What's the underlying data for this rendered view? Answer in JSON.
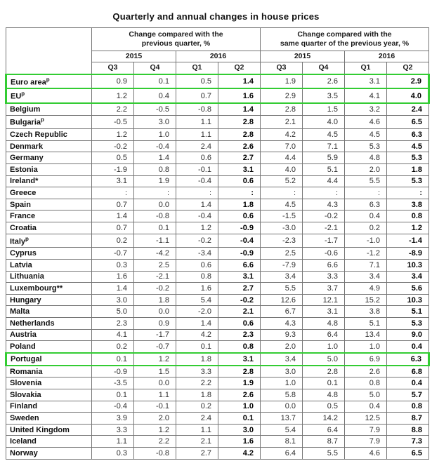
{
  "chart_data": {
    "type": "table",
    "title": "Quarterly and annual changes in house prices",
    "highlight_color": "#33cc33",
    "missing_value_symbol": ":",
    "group_headers": [
      {
        "line1": "Change compared with the",
        "line2": "previous quarter, %"
      },
      {
        "line1": "Change compared with the",
        "line2": "same quarter of the previous year, %"
      }
    ],
    "year_headers": [
      "2015",
      "2016",
      "2015",
      "2016"
    ],
    "quarter_headers": [
      "Q3",
      "Q4",
      "Q1",
      "Q2",
      "Q3",
      "Q4",
      "Q1",
      "Q2"
    ],
    "highlighted_rows": [
      "Euro area",
      "EU",
      "Portugal"
    ],
    "rows": [
      {
        "label": "Euro area",
        "sup": "p",
        "highlight": true,
        "values": [
          "0.9",
          "0.1",
          "0.5",
          "1.4",
          "1.9",
          "2.6",
          "3.1",
          "2.9"
        ]
      },
      {
        "label": "EU",
        "sup": "p",
        "highlight": true,
        "values": [
          "1.2",
          "0.4",
          "0.7",
          "1.6",
          "2.9",
          "3.5",
          "4.1",
          "4.0"
        ]
      },
      {
        "label": "Belgium",
        "highlight": false,
        "values": [
          "2.2",
          "-0.5",
          "-0.8",
          "1.4",
          "2.8",
          "1.5",
          "3.2",
          "2.4"
        ]
      },
      {
        "label": "Bulgaria",
        "sup": "p",
        "highlight": false,
        "values": [
          "-0.5",
          "3.0",
          "1.1",
          "2.8",
          "2.1",
          "4.0",
          "4.6",
          "6.5"
        ]
      },
      {
        "label": "Czech Republic",
        "highlight": false,
        "values": [
          "1.2",
          "1.0",
          "1.1",
          "2.8",
          "4.2",
          "4.5",
          "4.5",
          "6.3"
        ]
      },
      {
        "label": "Denmark",
        "highlight": false,
        "values": [
          "-0.2",
          "-0.4",
          "2.4",
          "2.6",
          "7.0",
          "7.1",
          "5.3",
          "4.5"
        ]
      },
      {
        "label": "Germany",
        "highlight": false,
        "values": [
          "0.5",
          "1.4",
          "0.6",
          "2.7",
          "4.4",
          "5.9",
          "4.8",
          "5.3"
        ]
      },
      {
        "label": "Estonia",
        "highlight": false,
        "values": [
          "-1.9",
          "0.8",
          "-0.1",
          "3.1",
          "4.0",
          "5.1",
          "2.0",
          "1.8"
        ]
      },
      {
        "label": "Ireland*",
        "highlight": false,
        "values": [
          "3.1",
          "1.9",
          "-0.4",
          "0.6",
          "5.2",
          "4.4",
          "5.5",
          "5.3"
        ]
      },
      {
        "label": "Greece",
        "highlight": false,
        "values": [
          ":",
          ":",
          ":",
          ":",
          ":",
          ":",
          ":",
          ":"
        ]
      },
      {
        "label": "Spain",
        "highlight": false,
        "values": [
          "0.7",
          "0.0",
          "1.4",
          "1.8",
          "4.5",
          "4.3",
          "6.3",
          "3.8"
        ]
      },
      {
        "label": "France",
        "highlight": false,
        "values": [
          "1.4",
          "-0.8",
          "-0.4",
          "0.6",
          "-1.5",
          "-0.2",
          "0.4",
          "0.8"
        ]
      },
      {
        "label": "Croatia",
        "highlight": false,
        "values": [
          "0.7",
          "0.1",
          "1.2",
          "-0.9",
          "-3.0",
          "-2.1",
          "0.2",
          "1.2"
        ]
      },
      {
        "label": "Italy",
        "sup": "p",
        "highlight": false,
        "values": [
          "0.2",
          "-1.1",
          "-0.2",
          "-0.4",
          "-2.3",
          "-1.7",
          "-1.0",
          "-1.4"
        ]
      },
      {
        "label": "Cyprus",
        "highlight": false,
        "values": [
          "-0.7",
          "-4.2",
          "-3.4",
          "-0.9",
          "2.5",
          "-0.6",
          "-1.2",
          "-8.9"
        ]
      },
      {
        "label": "Latvia",
        "highlight": false,
        "values": [
          "0.3",
          "2.5",
          "0.6",
          "6.6",
          "-7.9",
          "6.6",
          "7.1",
          "10.3"
        ]
      },
      {
        "label": "Lithuania",
        "highlight": false,
        "values": [
          "1.6",
          "-2.1",
          "0.8",
          "3.1",
          "3.4",
          "3.3",
          "3.4",
          "3.4"
        ]
      },
      {
        "label": "Luxembourg**",
        "highlight": false,
        "values": [
          "1.4",
          "-0.2",
          "1.6",
          "2.7",
          "5.5",
          "3.7",
          "4.9",
          "5.6"
        ]
      },
      {
        "label": "Hungary",
        "highlight": false,
        "values": [
          "3.0",
          "1.8",
          "5.4",
          "-0.2",
          "12.6",
          "12.1",
          "15.2",
          "10.3"
        ]
      },
      {
        "label": "Malta",
        "highlight": false,
        "values": [
          "5.0",
          "0.0",
          "-2.0",
          "2.1",
          "6.7",
          "3.1",
          "3.8",
          "5.1"
        ]
      },
      {
        "label": "Netherlands",
        "highlight": false,
        "values": [
          "2.3",
          "0.9",
          "1.4",
          "0.6",
          "4.3",
          "4.8",
          "5.1",
          "5.3"
        ]
      },
      {
        "label": "Austria",
        "highlight": false,
        "values": [
          "4.1",
          "-1.7",
          "4.2",
          "2.3",
          "9.3",
          "6.4",
          "13.4",
          "9.0"
        ]
      },
      {
        "label": "Poland",
        "highlight": false,
        "values": [
          "0.2",
          "-0.7",
          "0.1",
          "0.8",
          "2.0",
          "1.0",
          "1.0",
          "0.4"
        ]
      },
      {
        "label": "Portugal",
        "highlight": true,
        "values": [
          "0.1",
          "1.2",
          "1.8",
          "3.1",
          "3.4",
          "5.0",
          "6.9",
          "6.3"
        ]
      },
      {
        "label": "Romania",
        "highlight": false,
        "values": [
          "-0.9",
          "1.5",
          "3.3",
          "2.8",
          "3.0",
          "2.8",
          "2.6",
          "6.8"
        ]
      },
      {
        "label": "Slovenia",
        "highlight": false,
        "values": [
          "-3.5",
          "0.0",
          "2.2",
          "1.9",
          "1.0",
          "0.1",
          "0.8",
          "0.4"
        ]
      },
      {
        "label": "Slovakia",
        "highlight": false,
        "values": [
          "0.1",
          "1.1",
          "1.8",
          "2.6",
          "5.8",
          "4.8",
          "5.0",
          "5.7"
        ]
      },
      {
        "label": "Finland",
        "highlight": false,
        "values": [
          "-0.4",
          "-0.1",
          "0.2",
          "1.0",
          "0.0",
          "0.5",
          "0.4",
          "0.8"
        ]
      },
      {
        "label": "Sweden",
        "highlight": false,
        "values": [
          "3.9",
          "2.0",
          "2.4",
          "0.1",
          "13.7",
          "14.2",
          "12.5",
          "8.7"
        ]
      },
      {
        "label": "United Kingdom",
        "highlight": false,
        "values": [
          "3.3",
          "1.2",
          "1.1",
          "3.0",
          "5.4",
          "6.4",
          "7.9",
          "8.8"
        ]
      },
      {
        "label": "Iceland",
        "highlight": false,
        "values": [
          "1.1",
          "2.2",
          "2.1",
          "1.6",
          "8.1",
          "8.7",
          "7.9",
          "7.3"
        ]
      },
      {
        "label": "Norway",
        "highlight": false,
        "values": [
          "0.3",
          "-0.8",
          "2.7",
          "4.2",
          "6.4",
          "5.5",
          "4.6",
          "6.5"
        ]
      }
    ]
  }
}
